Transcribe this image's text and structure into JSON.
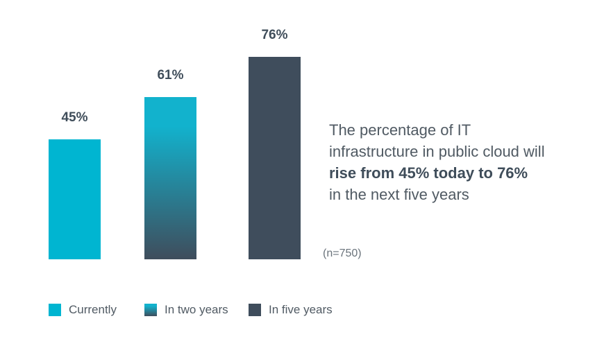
{
  "chart_data": {
    "type": "bar",
    "categories": [
      "Currently",
      "In two years",
      "In five years"
    ],
    "values": [
      45,
      61,
      76
    ],
    "data_labels": [
      "45%",
      "61%",
      "76%"
    ],
    "ylim": [
      0,
      80
    ],
    "grid": false,
    "legend_placement": "bottom",
    "colors": [
      "#00b5d1",
      "gradient:#12b2cd-#3f4d5c",
      "#3f4d5c"
    ],
    "annotation": {
      "line1": "The percentage of IT",
      "line2": "infrastructure in public cloud will",
      "bold": "rise from 45% today to 76%",
      "line4": "in the next five years"
    },
    "note": "(n=750)"
  }
}
